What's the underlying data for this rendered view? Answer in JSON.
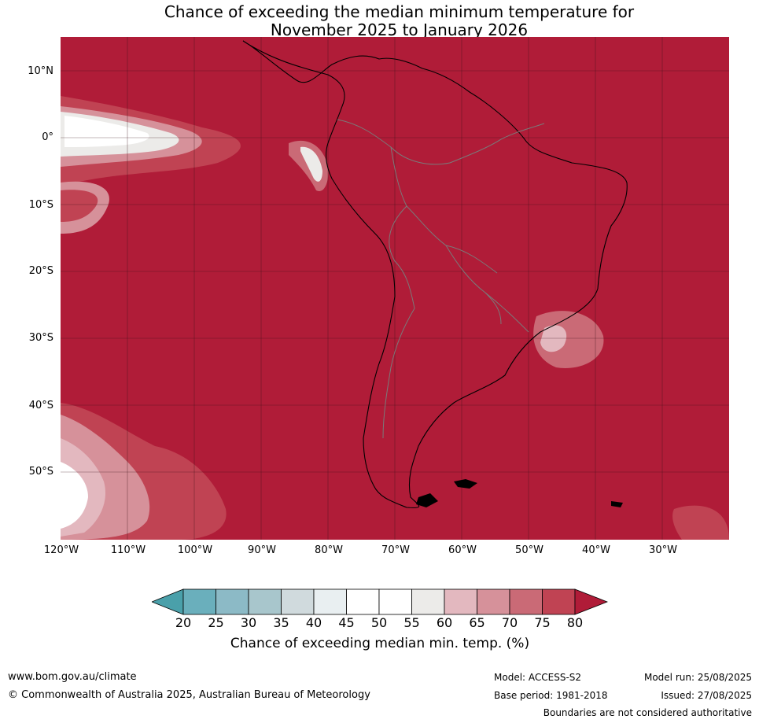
{
  "title": {
    "line1": "Chance of exceeding the median minimum temperature for",
    "line2": "November 2025 to January 2026"
  },
  "map": {
    "region": "South America",
    "background_class_color": "#b01c38",
    "latitude_labels": [
      "10°N",
      "0°",
      "10°S",
      "20°S",
      "30°S",
      "40°S",
      "50°S"
    ],
    "longitude_labels": [
      "120°W",
      "110°W",
      "100°W",
      "90°W",
      "80°W",
      "70°W",
      "60°W",
      "50°W",
      "40°W",
      "30°W"
    ],
    "features": [
      "extensive >80% probability (dark red) across most of the domain",
      "near-equatorial eastern Pacific tongue of 40–60% values",
      "southeastern Pacific patches of 40–70% values",
      "small patches near coastal Peru/Ecuador and South Atlantic (~30°S, 45°W)"
    ]
  },
  "colorbar": {
    "ticks": [
      "20",
      "25",
      "30",
      "35",
      "40",
      "45",
      "50",
      "55",
      "60",
      "65",
      "70",
      "75",
      "80"
    ],
    "colors": [
      "#4aa0aa",
      "#6aafbc",
      "#8cbac6",
      "#a8c6cc",
      "#d0dadd",
      "#e9eff1",
      "#ffffff",
      "#ffffff",
      "#ecebe9",
      "#e3b8bf",
      "#d6919a",
      "#ca6a76",
      "#c04353",
      "#b01c38"
    ],
    "label": "Chance of exceeding median min. temp. (%)"
  },
  "footer": {
    "url": "www.bom.gov.au/climate",
    "copyright": "© Commonwealth of Australia 2025, Australian Bureau of Meteorology",
    "model": "Model: ACCESS-S2",
    "base_period": "Base period: 1981-2018",
    "model_run": "Model run: 25/08/2025",
    "issued": "Issued: 27/08/2025",
    "disclaimer": "Boundaries are not considered authoritative"
  }
}
